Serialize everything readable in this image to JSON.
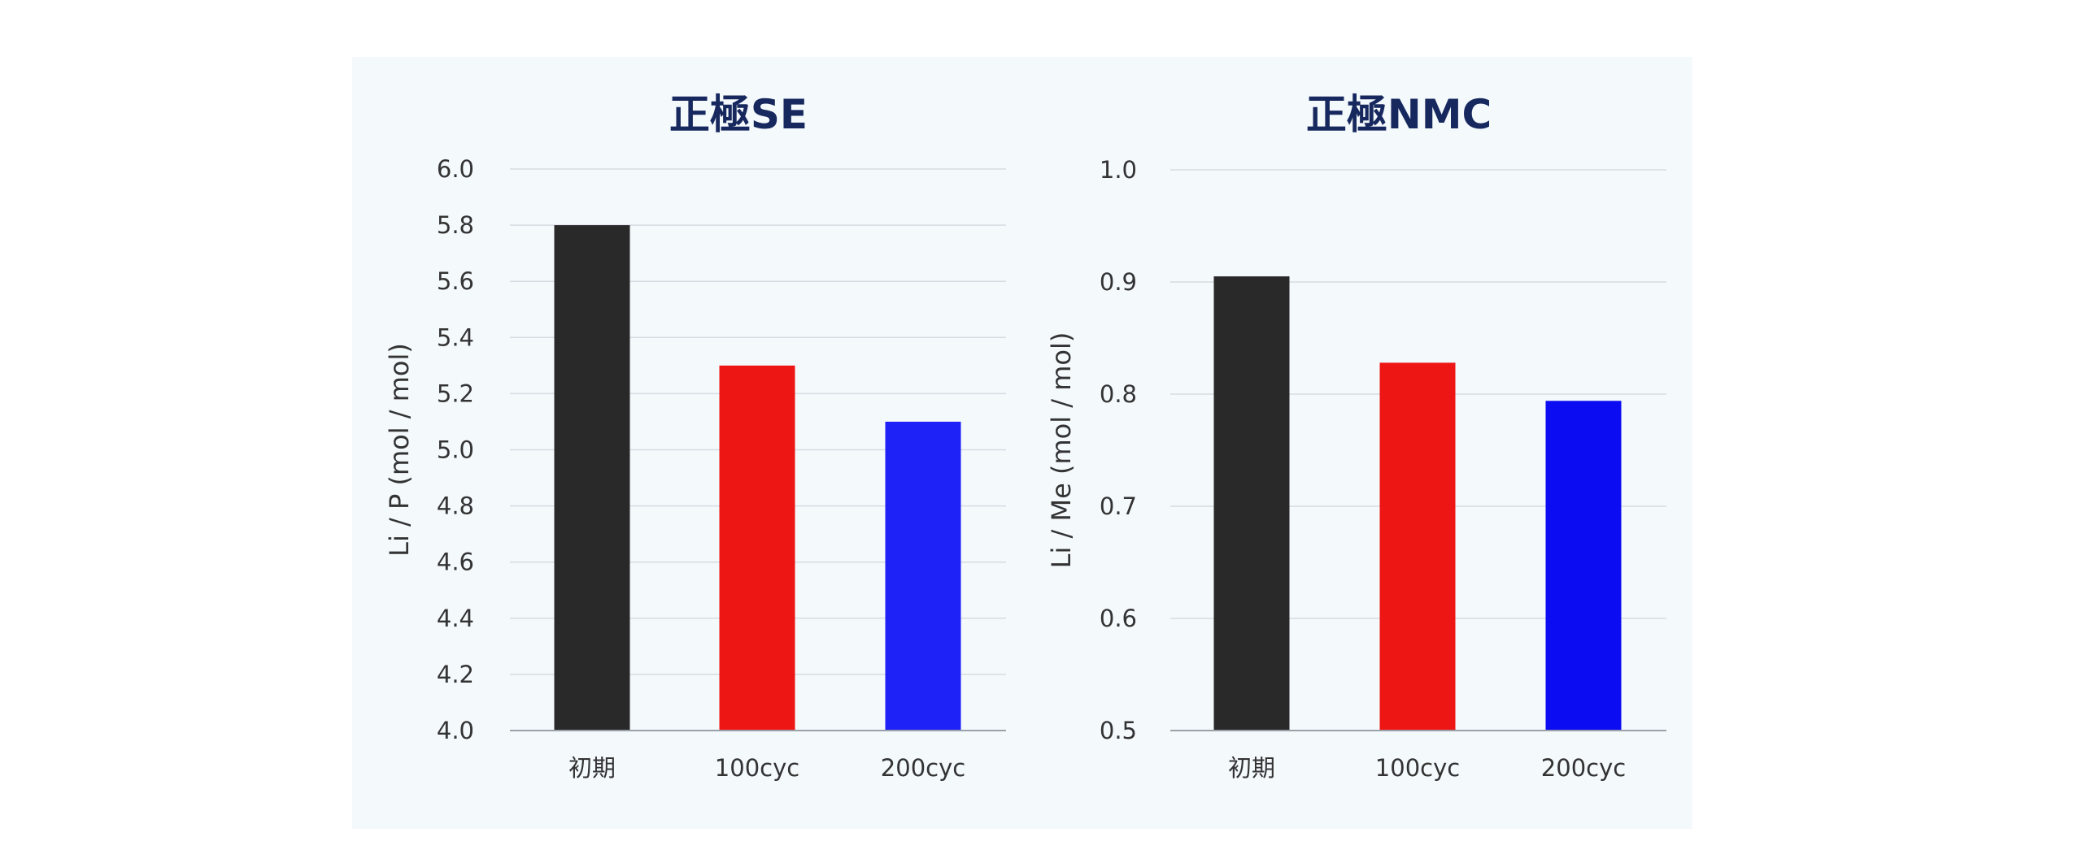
{
  "chart_data": [
    {
      "type": "bar",
      "title": "正極SE",
      "ylabel": "Li / P (mol / mol)",
      "xlabel": "",
      "categories": [
        "初期",
        "100cyc",
        "200cyc"
      ],
      "values": [
        5.8,
        5.3,
        5.1
      ],
      "colors": [
        "#292929",
        "#ee1515",
        "#1e22f7"
      ],
      "ylim": [
        4.0,
        6.0
      ],
      "yticks": [
        4.0,
        4.2,
        4.4,
        4.6,
        4.8,
        5.0,
        5.2,
        5.4,
        5.6,
        5.8,
        6.0
      ],
      "ytick_labels": [
        "4.0",
        "4.2",
        "4.4",
        "4.6",
        "4.8",
        "5.0",
        "5.2",
        "5.4",
        "5.6",
        "5.8",
        "6.0"
      ],
      "grid": true,
      "legend": "none"
    },
    {
      "type": "bar",
      "title": "正極NMC",
      "ylabel": "Li / Me (mol / mol)",
      "xlabel": "",
      "categories": [
        "初期",
        "100cyc",
        "200cyc"
      ],
      "values": [
        0.905,
        0.828,
        0.794
      ],
      "colors": [
        "#292929",
        "#ee1515",
        "#0c0cf2"
      ],
      "ylim": [
        0.5,
        1.0
      ],
      "yticks": [
        0.5,
        0.6,
        0.7,
        0.8,
        0.9,
        1.0
      ],
      "ytick_labels": [
        "0.5",
        "0.6",
        "0.7",
        "0.8",
        "0.9",
        "1.0"
      ],
      "grid": true,
      "legend": "none"
    }
  ]
}
